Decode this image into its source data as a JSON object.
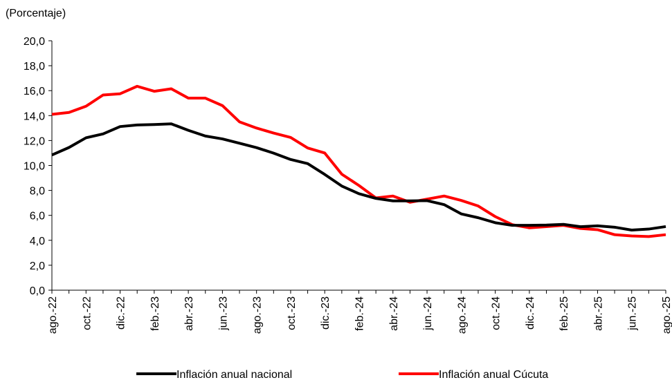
{
  "chart_data": {
    "type": "line",
    "y_label": "(Porcentaje)",
    "categories": [
      "ago.-22",
      null,
      "oct.-22",
      null,
      "dic.-22",
      null,
      "feb.-23",
      null,
      "abr.-23",
      null,
      "jun.-23",
      null,
      "ago.-23",
      null,
      "oct.-23",
      null,
      "dic.-23",
      null,
      "feb.-24",
      null,
      "abr.-24",
      null,
      "jun.-24",
      null,
      "ago.-24",
      null,
      "oct.-24",
      null,
      "dic.-24",
      null,
      "feb.-25",
      null,
      "abr.-25",
      null,
      "jun.-25",
      null,
      "ago.-25"
    ],
    "series": [
      {
        "name": "Inflación anual nacional",
        "color": "#000000",
        "values": [
          10.84,
          11.44,
          12.22,
          12.53,
          13.12,
          13.25,
          13.28,
          13.34,
          12.82,
          12.36,
          12.13,
          11.78,
          11.43,
          10.99,
          10.48,
          10.15,
          9.28,
          8.35,
          7.74,
          7.36,
          7.16,
          7.16,
          7.18,
          6.86,
          6.12,
          5.81,
          5.41,
          5.2,
          5.2,
          5.22,
          5.28,
          5.09,
          5.16,
          5.05,
          4.82,
          4.9,
          5.1
        ]
      },
      {
        "name": "Inflación anual Cúcuta",
        "color": "#ff0000",
        "values": [
          14.1,
          14.25,
          14.75,
          15.65,
          15.75,
          16.35,
          15.95,
          16.15,
          15.4,
          15.4,
          14.8,
          13.5,
          13.0,
          12.6,
          12.25,
          11.4,
          11.0,
          9.3,
          8.4,
          7.4,
          7.55,
          7.05,
          7.3,
          7.55,
          7.2,
          6.75,
          5.9,
          5.25,
          5.0,
          5.1,
          5.2,
          4.95,
          4.85,
          4.45,
          4.35,
          4.3,
          4.45
        ]
      }
    ],
    "ylim": [
      0,
      20
    ],
    "yticks": [
      {
        "value": 0,
        "label": "0,0"
      },
      {
        "value": 2,
        "label": "2,0"
      },
      {
        "value": 4,
        "label": "4,0"
      },
      {
        "value": 6,
        "label": "6,0"
      },
      {
        "value": 8,
        "label": "8,0"
      },
      {
        "value": 10,
        "label": "10,0"
      },
      {
        "value": 12,
        "label": "12,0"
      },
      {
        "value": 14,
        "label": "14,0"
      },
      {
        "value": 16,
        "label": "16,0"
      },
      {
        "value": 18,
        "label": "18,0"
      },
      {
        "value": 20,
        "label": "20,0"
      }
    ],
    "grid": false,
    "legend": "bottom"
  }
}
